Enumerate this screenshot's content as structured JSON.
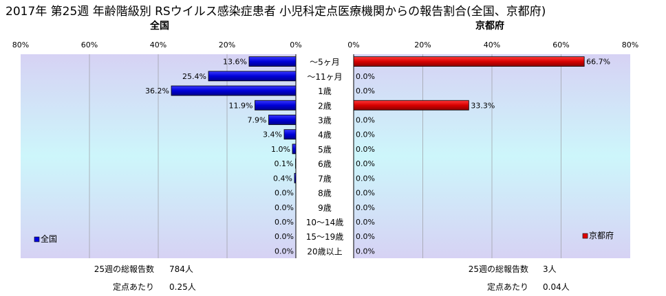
{
  "title": "2017年 第25週 年齢階級別 RSウイルス感染症患者 小児科定点医療機関からの報告割合(全国、京都府)",
  "left_panel": {
    "name": "全国",
    "legend": "全国",
    "report_label": "25週の総報告数",
    "report_value": "784人",
    "per_site_label": "定点あたり",
    "per_site_value": "0.25人"
  },
  "right_panel": {
    "name": "京都府",
    "legend": "京都府",
    "report_label": "25週の総報告数",
    "report_value": "3人",
    "per_site_label": "定点あたり",
    "per_site_value": "0.04人"
  },
  "colors": {
    "left_bar": "#0000e0",
    "right_bar": "#e00000",
    "plot_top": "#d6d2f4",
    "plot_mid": "#cdf6fb",
    "plot_bottom": "#d6d2f4"
  },
  "chart_data": {
    "type": "bar",
    "orientation": "horizontal",
    "categories": [
      "～5ヶ月",
      "～11ヶ月",
      "1歳",
      "2歳",
      "3歳",
      "4歳",
      "5歳",
      "6歳",
      "7歳",
      "8歳",
      "9歳",
      "10～14歳",
      "15～19歳",
      "20歳以上"
    ],
    "series": [
      {
        "name": "全国",
        "values": [
          13.6,
          25.4,
          36.2,
          11.9,
          7.9,
          3.4,
          1.0,
          0.1,
          0.4,
          0.0,
          0.0,
          0.0,
          0.0,
          0.0
        ],
        "labels": [
          "13.6%",
          "25.4%",
          "36.2%",
          "11.9%",
          "7.9%",
          "3.4%",
          "1.0%",
          "0.1%",
          "0.4%",
          "0.0%",
          "0.0%",
          "0.0%",
          "0.0%",
          "0.0%"
        ]
      },
      {
        "name": "京都府",
        "values": [
          66.7,
          0.0,
          0.0,
          33.3,
          0.0,
          0.0,
          0.0,
          0.0,
          0.0,
          0.0,
          0.0,
          0.0,
          0.0,
          0.0
        ],
        "labels": [
          "66.7%",
          "0.0%",
          "0.0%",
          "33.3%",
          "0.0%",
          "0.0%",
          "0.0%",
          "0.0%",
          "0.0%",
          "0.0%",
          "0.0%",
          "0.0%",
          "0.0%",
          "0.0%"
        ]
      }
    ],
    "xlim": [
      0,
      80
    ],
    "x_ticks": [
      "0%",
      "20%",
      "40%",
      "60%",
      "80%"
    ],
    "x_ticks_left": [
      "80%",
      "60%",
      "40%",
      "20%",
      "0%"
    ],
    "grid": true,
    "legend_position": "bottom-left / bottom-right"
  }
}
